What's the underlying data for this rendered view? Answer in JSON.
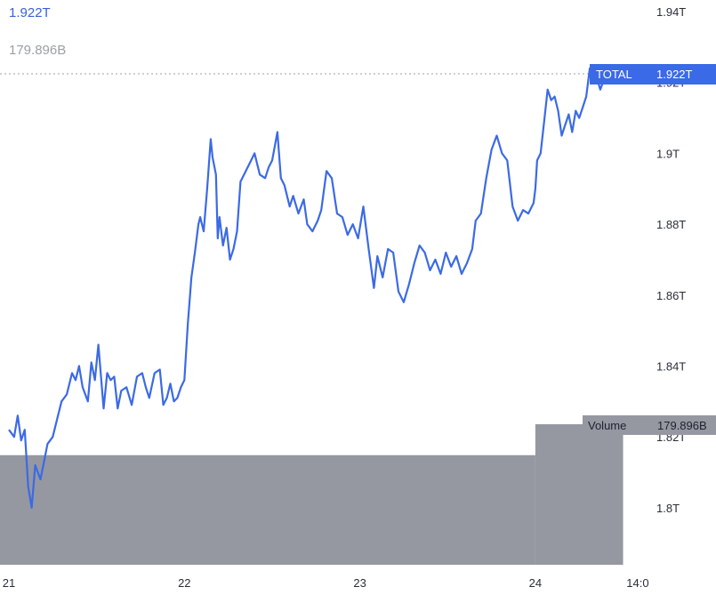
{
  "header": {
    "total_value": "1.922T",
    "volume_value": "179.896B"
  },
  "colors": {
    "line": "#3b6ae6",
    "volume_bar": "#9598a1",
    "price_tag": "#3b6ae6",
    "volume_tag": "#9598a1"
  },
  "price_tag": {
    "series_label": "TOTAL",
    "value": "1.922T"
  },
  "volume_tag": {
    "label": "Volume",
    "value": "179.896B"
  },
  "chart_data": {
    "type": "line",
    "y_unit": "T",
    "ylim": [
      1.785,
      1.945
    ],
    "y_ticks": [
      {
        "value": 1.94,
        "label": "1.94T"
      },
      {
        "value": 1.92,
        "label": "1.92T"
      },
      {
        "value": 1.9,
        "label": "1.9T"
      },
      {
        "value": 1.88,
        "label": "1.88T"
      },
      {
        "value": 1.86,
        "label": "1.86T"
      },
      {
        "value": 1.84,
        "label": "1.84T"
      },
      {
        "value": 1.82,
        "label": "1.82T"
      },
      {
        "value": 1.8,
        "label": "1.8T"
      }
    ],
    "xlim": [
      21.0,
      25.0
    ],
    "x_ticks": [
      {
        "value": 21.0,
        "label": "21"
      },
      {
        "value": 22.0,
        "label": "22"
      },
      {
        "value": 23.0,
        "label": "23"
      },
      {
        "value": 24.0,
        "label": "24"
      },
      {
        "value": 24.583,
        "label": "14:0"
      }
    ],
    "series": [
      {
        "name": "TOTAL",
        "x": [
          21.0,
          21.03,
          21.05,
          21.07,
          21.09,
          21.11,
          21.13,
          21.15,
          21.18,
          21.2,
          21.22,
          21.25,
          21.28,
          21.3,
          21.33,
          21.36,
          21.38,
          21.4,
          21.42,
          21.45,
          21.47,
          21.49,
          21.51,
          21.54,
          21.56,
          21.58,
          21.6,
          21.62,
          21.64,
          21.67,
          21.7,
          21.73,
          21.76,
          21.78,
          21.8,
          21.83,
          21.86,
          21.88,
          21.9,
          21.92,
          21.94,
          21.96,
          21.98,
          22.0,
          22.02,
          22.04,
          22.06,
          22.08,
          22.09,
          22.11,
          22.13,
          22.15,
          22.16,
          22.18,
          22.19,
          22.2,
          22.22,
          22.24,
          22.26,
          22.28,
          22.3,
          22.32,
          22.35,
          22.38,
          22.4,
          22.43,
          22.46,
          22.48,
          22.5,
          22.53,
          22.55,
          22.57,
          22.6,
          22.62,
          22.65,
          22.68,
          22.7,
          22.73,
          22.76,
          22.78,
          22.81,
          22.84,
          22.87,
          22.9,
          22.93,
          22.96,
          22.99,
          23.02,
          23.05,
          23.08,
          23.1,
          23.13,
          23.16,
          23.19,
          23.22,
          23.25,
          23.28,
          23.31,
          23.34,
          23.37,
          23.4,
          23.43,
          23.46,
          23.49,
          23.52,
          23.55,
          23.58,
          23.61,
          23.64,
          23.66,
          23.69,
          23.72,
          23.75,
          23.78,
          23.81,
          23.84,
          23.87,
          23.9,
          23.93,
          23.96,
          23.99,
          24.0,
          24.01,
          24.03,
          24.05,
          24.07,
          24.09,
          24.11,
          24.13,
          24.15,
          24.17,
          24.19,
          24.21,
          24.23,
          24.25,
          24.27,
          24.29,
          24.31,
          24.34,
          24.37,
          24.4,
          24.43,
          24.47,
          24.5
        ],
        "y": [
          1.822,
          1.82,
          1.826,
          1.819,
          1.822,
          1.806,
          1.8,
          1.812,
          1.808,
          1.813,
          1.818,
          1.82,
          1.826,
          1.83,
          1.832,
          1.838,
          1.836,
          1.84,
          1.834,
          1.83,
          1.841,
          1.836,
          1.846,
          1.828,
          1.838,
          1.836,
          1.837,
          1.828,
          1.833,
          1.834,
          1.829,
          1.837,
          1.838,
          1.834,
          1.831,
          1.838,
          1.839,
          1.829,
          1.831,
          1.835,
          1.83,
          1.831,
          1.834,
          1.836,
          1.852,
          1.865,
          1.872,
          1.88,
          1.882,
          1.878,
          1.89,
          1.904,
          1.899,
          1.894,
          1.876,
          1.882,
          1.874,
          1.879,
          1.87,
          1.873,
          1.878,
          1.892,
          1.895,
          1.898,
          1.9,
          1.894,
          1.893,
          1.896,
          1.898,
          1.906,
          1.893,
          1.891,
          1.885,
          1.888,
          1.883,
          1.887,
          1.88,
          1.878,
          1.881,
          1.884,
          1.895,
          1.893,
          1.883,
          1.882,
          1.877,
          1.88,
          1.876,
          1.885,
          1.873,
          1.862,
          1.871,
          1.865,
          1.873,
          1.872,
          1.861,
          1.858,
          1.863,
          1.869,
          1.874,
          1.872,
          1.867,
          1.87,
          1.866,
          1.872,
          1.868,
          1.871,
          1.866,
          1.869,
          1.873,
          1.881,
          1.883,
          1.893,
          1.901,
          1.905,
          1.9,
          1.898,
          1.885,
          1.881,
          1.884,
          1.883,
          1.886,
          1.89,
          1.898,
          1.9,
          1.909,
          1.918,
          1.915,
          1.916,
          1.912,
          1.905,
          1.908,
          1.911,
          1.906,
          1.912,
          1.91,
          1.913,
          1.916,
          1.924,
          1.923,
          1.918,
          1.922,
          1.92,
          1.92,
          1.922
        ]
      }
    ],
    "volume": {
      "name": "Volume",
      "bars": [
        {
          "x_start": 20.9,
          "x_end": 24.0,
          "level": 0.78
        },
        {
          "x_start": 24.0,
          "x_end": 24.5,
          "level": 1.0
        }
      ]
    }
  }
}
